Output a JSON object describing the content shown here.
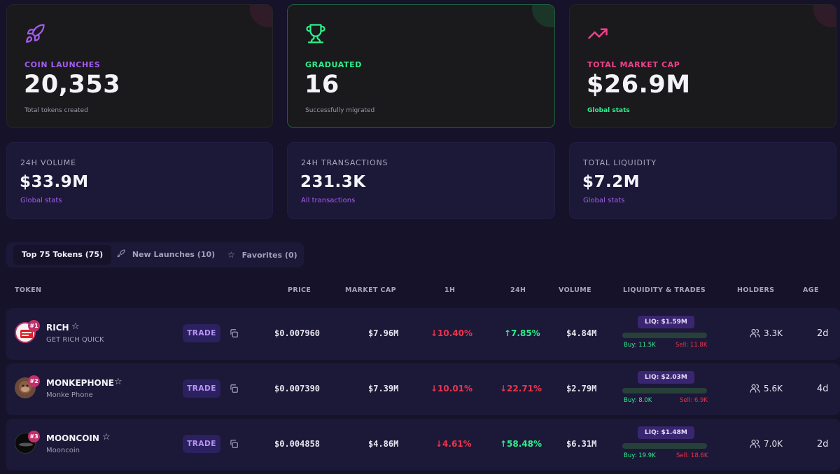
{
  "stats_top": [
    {
      "label": "COIN LAUNCHES",
      "value": "20,353",
      "sub": "Total tokens created",
      "icon": "rocket-icon",
      "accent": "#a45cf0"
    },
    {
      "label": "GRADUATED",
      "value": "16",
      "sub": "Successfully migrated",
      "icon": "trophy-icon",
      "accent": "#2ef08d"
    },
    {
      "label": "TOTAL MARKET CAP",
      "value": "$26.9M",
      "sub": "Global stats",
      "icon": "trending-up-icon",
      "accent": "#f0408a"
    }
  ],
  "stats_bottom": [
    {
      "label": "24H VOLUME",
      "value": "$33.9M",
      "sub": "Global stats"
    },
    {
      "label": "24H TRANSACTIONS",
      "value": "231.3K",
      "sub": "All transactions"
    },
    {
      "label": "TOTAL LIQUIDITY",
      "value": "$7.2M",
      "sub": "Global stats"
    }
  ],
  "tabs": [
    {
      "label": "Top 75 Tokens (75)",
      "icon": "",
      "active": true
    },
    {
      "label": "New Launches (10)",
      "icon": "rocket-icon",
      "active": false
    },
    {
      "label": "Favorites (0)",
      "icon": "star-icon",
      "active": false
    }
  ],
  "columns": {
    "token": "TOKEN",
    "price": "PRICE",
    "market_cap": "MARKET CAP",
    "h1": "1H",
    "h24": "24H",
    "volume": "VOLUME",
    "liquidity": "LIQUIDITY & TRADES",
    "holders": "HOLDERS",
    "age": "AGE"
  },
  "trade_label": "TRADE",
  "tokens": [
    {
      "rank": "#1",
      "symbol": "RICH",
      "name": "GET RICH QUICK",
      "price": "$0.007960",
      "market_cap": "$7.96M",
      "h1": "↓10.40%",
      "h1_dir": "neg",
      "h24": "↑7.85%",
      "h24_dir": "pos",
      "volume": "$4.84M",
      "liq": "LIQ: $1.59M",
      "buy": "Buy: 11.5K",
      "sell": "Sell: 11.8K",
      "holders": "3.3K",
      "age": "2d"
    },
    {
      "rank": "#2",
      "symbol": "MONKEPHONE",
      "name": "Monke Phone",
      "price": "$0.007390",
      "market_cap": "$7.39M",
      "h1": "↓10.01%",
      "h1_dir": "neg",
      "h24": "↓22.71%",
      "h24_dir": "neg",
      "volume": "$2.79M",
      "liq": "LIQ: $2.03M",
      "buy": "Buy: 8.0K",
      "sell": "Sell: 6.9K",
      "holders": "5.6K",
      "age": "4d"
    },
    {
      "rank": "#3",
      "symbol": "MOONCOIN",
      "name": "Mooncoin",
      "price": "$0.004858",
      "market_cap": "$4.86M",
      "h1": "↓4.61%",
      "h1_dir": "neg",
      "h24": "↑58.48%",
      "h24_dir": "pos",
      "volume": "$6.31M",
      "liq": "LIQ: $1.48M",
      "buy": "Buy: 19.9K",
      "sell": "Sell: 18.6K",
      "holders": "7.0K",
      "age": "2d"
    }
  ]
}
